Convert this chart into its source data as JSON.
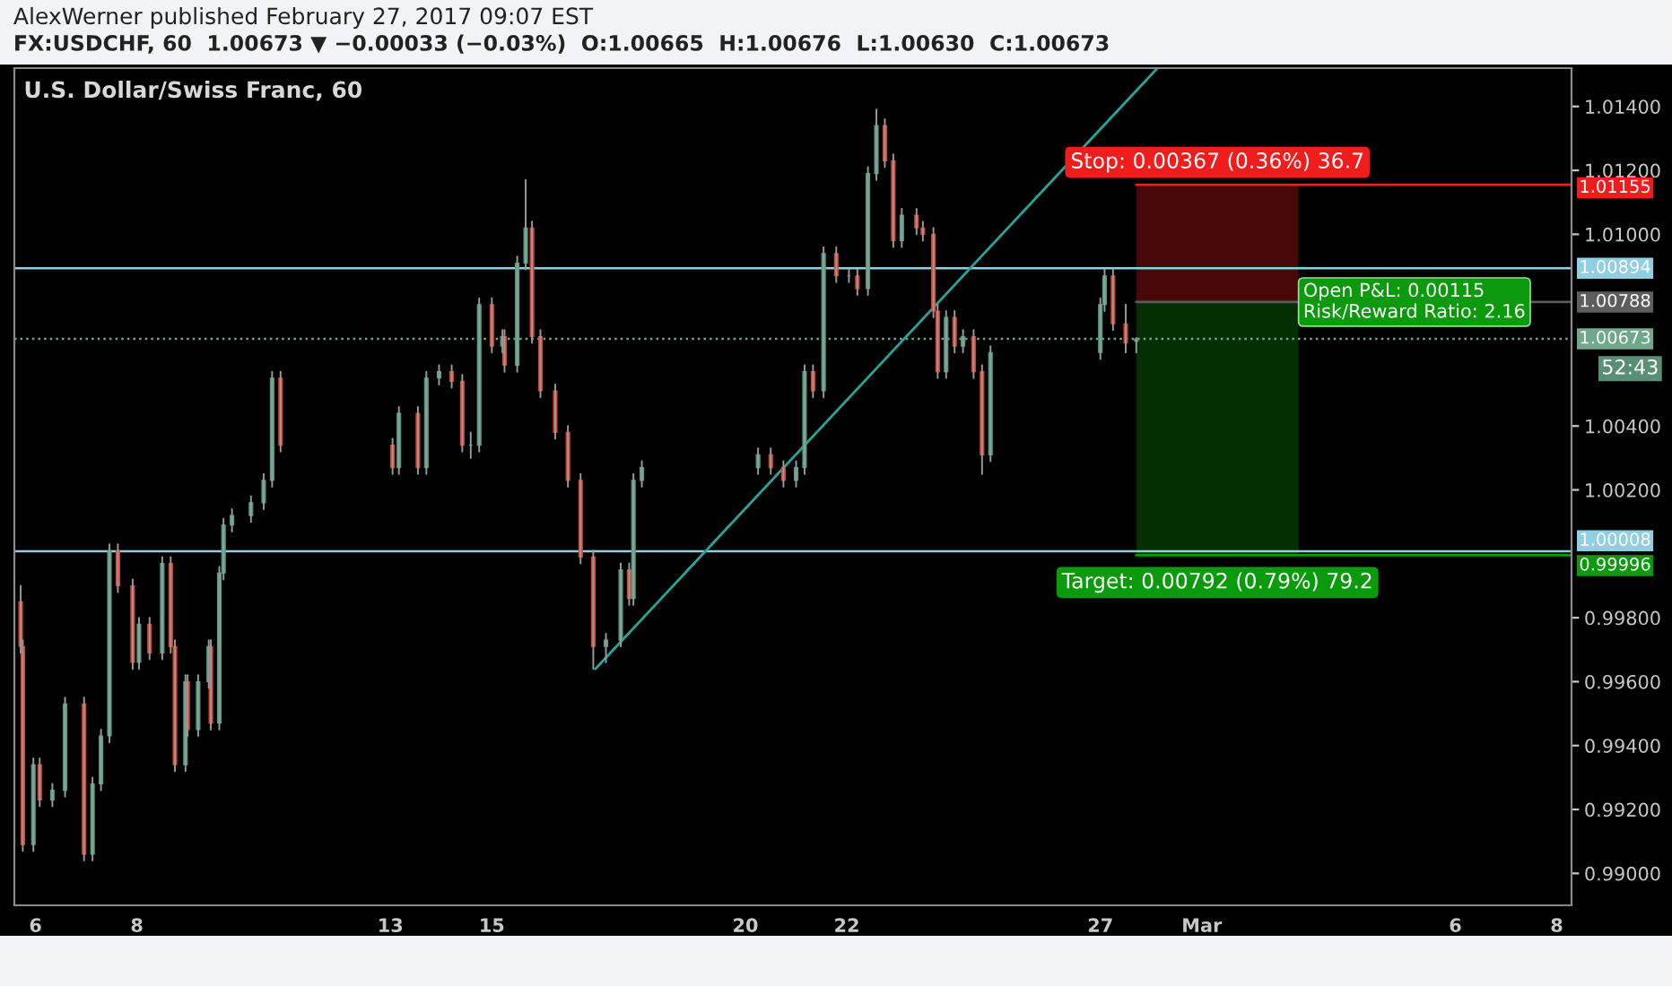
{
  "chart_data": {
    "type": "candlestick",
    "title": "U.S. Dollar/Swiss Franc, 60",
    "subtitle": "FX:USDCHF, 60  1.00673 ▼ −0.00033 (−0.03%)  O:1.00665  H:1.00676  L:1.00630  C:1.00673",
    "x": [
      "2017-02-05T17:00",
      "2017-02-05T18:00",
      "2017-02-05T23:00",
      "2017-02-06T02:00",
      "2017-02-06T08:00",
      "2017-02-06T14:00",
      "2017-02-06T23:00",
      "2017-02-07T03:00",
      "2017-02-07T07:00",
      "2017-02-07T11:00",
      "2017-02-07T15:00",
      "2017-02-07T22:00",
      "2017-02-08T01:00",
      "2017-02-08T06:00",
      "2017-02-08T12:00",
      "2017-02-08T16:00",
      "2017-02-08T18:00",
      "2017-02-08T23:00",
      "2017-02-09T00:00",
      "2017-02-09T05:00",
      "2017-02-09T10:00",
      "2017-02-09T11:00",
      "2017-02-09T15:00",
      "2017-02-09T17:00",
      "2017-02-09T21:00",
      "2017-02-10T06:00",
      "2017-02-10T12:00",
      "2017-02-10T16:00",
      "2017-02-10T20:00",
      "2017-02-13T01:00",
      "2017-02-13T04:00",
      "2017-02-13T13:00",
      "2017-02-13T17:00",
      "2017-02-13T23:00",
      "2017-02-14T05:00",
      "2017-02-14T10:00",
      "2017-02-14T14:00",
      "2017-02-14T18:00",
      "2017-02-15T00:00",
      "2017-02-15T05:00",
      "2017-02-15T06:00",
      "2017-02-15T12:00",
      "2017-02-15T16:00",
      "2017-02-15T19:00",
      "2017-02-15T23:00",
      "2017-02-16T06:00",
      "2017-02-16T12:00",
      "2017-02-16T18:00",
      "2017-02-17T00:00",
      "2017-02-17T06:00",
      "2017-02-17T13:00",
      "2017-02-17T17:00",
      "2017-02-17T19:00",
      "2017-02-17T23:00",
      "2017-02-20T06:00",
      "2017-02-20T12:00",
      "2017-02-20T18:00",
      "2017-02-21T00:00",
      "2017-02-21T04:00",
      "2017-02-21T08:00",
      "2017-02-21T13:00",
      "2017-02-21T19:00",
      "2017-02-22T01:00",
      "2017-02-22T05:00",
      "2017-02-22T10:00",
      "2017-02-22T14:00",
      "2017-02-22T18:00",
      "2017-02-22T22:00",
      "2017-02-23T02:00",
      "2017-02-23T09:00",
      "2017-02-23T12:00",
      "2017-02-23T17:00",
      "2017-02-23T19:00",
      "2017-02-23T23:00",
      "2017-02-24T03:00",
      "2017-02-24T07:00",
      "2017-02-24T12:00",
      "2017-02-24T16:00",
      "2017-02-24T20:00",
      "2017-02-27T00:00",
      "2017-02-27T02:00",
      "2017-02-27T06:00",
      "2017-02-27T12:00",
      "2017-02-27T17:00"
    ],
    "ohlc": [
      [
        0.9985,
        0.999,
        0.9969,
        0.9971
      ],
      [
        0.9971,
        0.9973,
        0.9907,
        0.9909
      ],
      [
        0.9909,
        0.9936,
        0.9907,
        0.9934
      ],
      [
        0.9934,
        0.9936,
        0.9921,
        0.9923
      ],
      [
        0.9923,
        0.9928,
        0.9921,
        0.9926
      ],
      [
        0.9926,
        0.9955,
        0.9924,
        0.9953
      ],
      [
        0.9953,
        0.9955,
        0.9904,
        0.9906
      ],
      [
        0.9906,
        0.993,
        0.9904,
        0.9928
      ],
      [
        0.9928,
        0.9945,
        0.9926,
        0.9943
      ],
      [
        0.9943,
        1.0003,
        0.9941,
        1.0001
      ],
      [
        1.0001,
        1.0003,
        0.9988,
        0.999
      ],
      [
        0.999,
        0.9992,
        0.9964,
        0.9966
      ],
      [
        0.9966,
        0.998,
        0.9964,
        0.9978
      ],
      [
        0.9978,
        0.998,
        0.9967,
        0.9969
      ],
      [
        0.9969,
        0.9999,
        0.9967,
        0.9997
      ],
      [
        0.9997,
        0.9999,
        0.9969,
        0.9971
      ],
      [
        0.9971,
        0.9973,
        0.9932,
        0.9934
      ],
      [
        0.9934,
        0.9962,
        0.9932,
        0.996
      ],
      [
        0.996,
        0.9962,
        0.9943,
        0.9945
      ],
      [
        0.9945,
        0.9962,
        0.9943,
        0.996
      ],
      [
        0.996,
        0.9973,
        0.9958,
        0.9971
      ],
      [
        0.9971,
        0.9973,
        0.9945,
        0.9947
      ],
      [
        0.9947,
        0.9996,
        0.9945,
        0.9994
      ],
      [
        0.9994,
        1.0011,
        0.9992,
        1.0009
      ],
      [
        1.0009,
        1.0014,
        1.0007,
        1.0012
      ],
      [
        1.0012,
        1.0018,
        1.001,
        1.0016
      ],
      [
        1.0016,
        1.0025,
        1.0014,
        1.0023
      ],
      [
        1.0023,
        1.0057,
        1.0021,
        1.0055
      ],
      [
        1.0055,
        1.0057,
        1.0032,
        1.0034
      ],
      [
        1.0034,
        1.0036,
        1.0025,
        1.0027
      ],
      [
        1.0027,
        1.0046,
        1.0025,
        1.0044
      ],
      [
        1.0044,
        1.0046,
        1.0025,
        1.0027
      ],
      [
        1.0027,
        1.0057,
        1.0025,
        1.0055
      ],
      [
        1.0055,
        1.0059,
        1.0053,
        1.0057
      ],
      [
        1.0057,
        1.0059,
        1.0052,
        1.0054
      ],
      [
        1.0054,
        1.0056,
        1.0032,
        1.0034
      ],
      [
        1.0034,
        1.0038,
        1.003,
        1.0034
      ],
      [
        1.0034,
        1.008,
        1.0032,
        1.0078
      ],
      [
        1.0078,
        1.008,
        1.0063,
        1.0065
      ],
      [
        1.0065,
        1.007,
        1.0063,
        1.0068
      ],
      [
        1.0068,
        1.007,
        1.0057,
        1.0059
      ],
      [
        1.0059,
        1.0093,
        1.0057,
        1.0091
      ],
      [
        1.0091,
        1.0117,
        1.0089,
        1.0102
      ],
      [
        1.0102,
        1.0104,
        1.0066,
        1.0068
      ],
      [
        1.0068,
        1.007,
        1.0049,
        1.0051
      ],
      [
        1.0051,
        1.0053,
        1.0036,
        1.0038
      ],
      [
        1.0038,
        1.004,
        1.0021,
        1.0023
      ],
      [
        1.0023,
        1.0025,
        0.9997,
        0.9999
      ],
      [
        0.9999,
        1.0001,
        0.9964,
        0.9971
      ],
      [
        0.9971,
        0.9975,
        0.9966,
        0.9973
      ],
      [
        0.9973,
        0.9997,
        0.9971,
        0.9995
      ],
      [
        0.9995,
        0.9997,
        0.9984,
        0.9986
      ],
      [
        0.9986,
        1.0025,
        0.9984,
        1.0023
      ],
      [
        1.0023,
        1.0029,
        1.0021,
        1.0027
      ],
      [
        1.0027,
        1.0033,
        1.0025,
        1.0031
      ],
      [
        1.0031,
        1.0033,
        1.0025,
        1.0027
      ],
      [
        1.0027,
        1.0029,
        1.0021,
        1.0023
      ],
      [
        1.0023,
        1.0029,
        1.0021,
        1.0027
      ],
      [
        1.0027,
        1.0059,
        1.0025,
        1.0057
      ],
      [
        1.0057,
        1.0059,
        1.0049,
        1.0051
      ],
      [
        1.0051,
        1.0096,
        1.0049,
        1.0094
      ],
      [
        1.0094,
        1.0096,
        1.0085,
        1.0087
      ],
      [
        1.0087,
        1.0089,
        1.0085,
        1.0087
      ],
      [
        1.0087,
        1.0089,
        1.0081,
        1.0083
      ],
      [
        1.0083,
        1.0121,
        1.0081,
        1.0119
      ],
      [
        1.0119,
        1.0139,
        1.0117,
        1.0134
      ],
      [
        1.0134,
        1.0136,
        1.0121,
        1.0123
      ],
      [
        1.0123,
        1.0125,
        1.0096,
        1.0098
      ],
      [
        1.0098,
        1.0108,
        1.0096,
        1.0106
      ],
      [
        1.0106,
        1.0108,
        1.01,
        1.0102
      ],
      [
        1.0102,
        1.0104,
        1.0098,
        1.01
      ],
      [
        1.01,
        1.0102,
        1.0074,
        1.0076
      ],
      [
        1.0076,
        1.0078,
        1.0055,
        1.0057
      ],
      [
        1.0057,
        1.0076,
        1.0055,
        1.0074
      ],
      [
        1.0074,
        1.0076,
        1.0063,
        1.0065
      ],
      [
        1.0065,
        1.007,
        1.0063,
        1.0068
      ],
      [
        1.0068,
        1.007,
        1.0055,
        1.0057
      ],
      [
        1.0057,
        1.0059,
        1.0025,
        1.0031
      ],
      [
        1.0031,
        1.0065,
        1.0029,
        1.0063
      ],
      [
        1.0063,
        1.008,
        1.0061,
        1.0078
      ],
      [
        1.0078,
        1.0089,
        1.0076,
        1.0087
      ],
      [
        1.0087,
        1.0089,
        1.007,
        1.0072
      ],
      [
        1.0072,
        1.0078,
        1.0063,
        1.0066
      ],
      [
        1.00665,
        1.00676,
        1.0063,
        1.00673
      ]
    ],
    "series": [
      {
        "type": "line",
        "x": [
          "2017-02-17T01:00",
          "2017-02-28T03:00"
        ],
        "values": [
          0.9964,
          1.0152
        ],
        "color": "#26a69a"
      }
    ],
    "xlim": [
      "2017-02-05T14:00",
      "2017-03-08T07:00"
    ],
    "xticks": [
      {
        "value": "2017-02-06",
        "label": "6"
      },
      {
        "value": "2017-02-08",
        "label": "8"
      },
      {
        "value": "2017-02-13",
        "label": "13"
      },
      {
        "value": "2017-02-15",
        "label": "15"
      },
      {
        "value": "2017-02-20",
        "label": "20"
      },
      {
        "value": "2017-02-22",
        "label": "22"
      },
      {
        "value": "2017-02-27",
        "label": "27"
      },
      {
        "value": "2017-03-01",
        "label": "Mar"
      },
      {
        "value": "2017-03-06",
        "label": "6"
      },
      {
        "value": "2017-03-08",
        "label": "8"
      }
    ],
    "ylim": [
      0.989,
      1.0152
    ],
    "yticks": [
      {
        "value": 0.99,
        "label": "0.99000"
      },
      {
        "value": 0.992,
        "label": "0.99200"
      },
      {
        "value": 0.994,
        "label": "0.99400"
      },
      {
        "value": 0.996,
        "label": "0.99600"
      },
      {
        "value": 0.998,
        "label": "0.99800"
      },
      {
        "value": 1.002,
        "label": "1.00200"
      },
      {
        "value": 1.004,
        "label": "1.00400"
      },
      {
        "value": 1.01,
        "label": "1.01000"
      },
      {
        "value": 1.012,
        "label": "1.01200"
      },
      {
        "value": 1.014,
        "label": "1.01400"
      }
    ],
    "ref_lines": [
      {
        "axis": "y",
        "value": 1.00894,
        "label": "1.00894",
        "color": "#8fcfe0",
        "line_style": "solid"
      },
      {
        "axis": "y",
        "value": 1.00008,
        "label": "1.00008",
        "color": "#8fcfe0",
        "line_style": "solid"
      },
      {
        "axis": "y",
        "value": 1.00673,
        "label": "1.00673",
        "color": "#6fa88a",
        "line_style": "dotted"
      },
      {
        "axis": "y",
        "value": 1.01155,
        "label": "1.01155",
        "color": "#f21c1c"
      },
      {
        "axis": "y",
        "value": 1.00788,
        "label": "1.00788",
        "color": "#5d5d5d"
      },
      {
        "axis": "y",
        "value": 0.99996,
        "label": "0.99996",
        "color": "#0b9a0b"
      }
    ],
    "bands": [
      {
        "axis": "y",
        "from": 1.00788,
        "to": 1.01155,
        "label": "Stop: 0.00367 (0.36%) 36.7",
        "color": "#f21c1c"
      },
      {
        "axis": "y",
        "from": 0.99996,
        "to": 1.00788,
        "label": "Target: 0.00792 (0.79%) 79.2",
        "color": "#0b9a0b"
      }
    ],
    "annotations": [
      "AlexWerner published February 27, 2017 09:07 EST",
      "52:43",
      {
        "text": "Open P&L: 0.00115\nRisk/Reward Ratio: 2.16",
        "x": "2017-03-03T00:00",
        "y": 1.00788
      }
    ],
    "grid": false,
    "legend": false
  }
}
